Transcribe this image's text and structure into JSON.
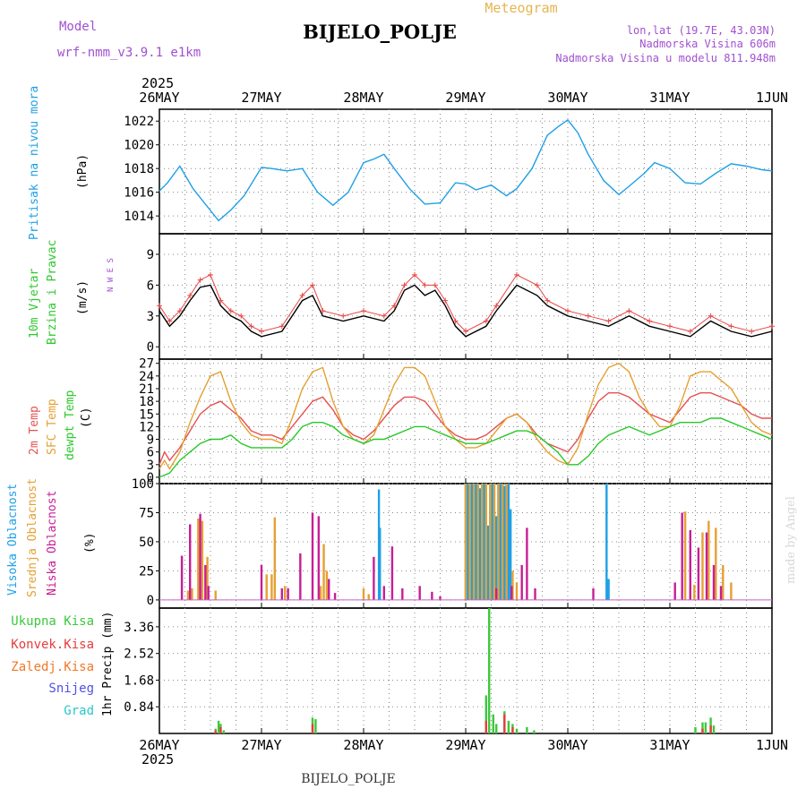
{
  "header": {
    "model_label": "Model",
    "model_name": "wrf-nmm_v3.9.1 e1km",
    "title": "BIJELO_POLJE",
    "subtitle": "Meteogram",
    "coords": "lon,lat (19.7E, 43.03N)",
    "elevation": "Nadmorska Visina 606m",
    "model_elevation": "Nadmorska Visina u modelu 811.948m",
    "watermark": "made by Angel",
    "footer": "BIJELO_POLJE"
  },
  "time_axis": {
    "top_year": "2025",
    "bottom_year": "2025",
    "labels": [
      "26MAY",
      "27MAY",
      "28MAY",
      "29MAY",
      "30MAY",
      "31MAY",
      "1JUN"
    ]
  },
  "colors": {
    "pressure": "#1ea0e6",
    "wind_speed": "#000000",
    "wind_gust": "#e64646",
    "t2m": "#e65050",
    "sfc": "#e6a032",
    "dewpt": "#28c828",
    "high_cloud": "#1ea0e6",
    "mid_cloud": "#e6a032",
    "low_cloud": "#c81e96",
    "total_rain": "#3cc83c",
    "conv_rain": "#e63c3c",
    "frozen_rain": "#f07828",
    "snow": "#5050e6",
    "hail": "#28c8c8",
    "axis_label_purple": "#a050d0"
  },
  "chart_data": [
    {
      "type": "line",
      "ylabel_left": "Pritisak na nivou mora",
      "unit": "(hPa)",
      "yticks": [
        1014,
        1016,
        1018,
        1020,
        1022
      ],
      "ylim": [
        1012.5,
        1023
      ],
      "series": [
        {
          "key": "pressure",
          "x": [
            0,
            0.08,
            0.2,
            0.33,
            0.45,
            0.58,
            0.7,
            0.83,
            1.0,
            1.1,
            1.25,
            1.4,
            1.55,
            1.7,
            1.85,
            2.0,
            2.1,
            2.2,
            2.3,
            2.45,
            2.6,
            2.75,
            2.9,
            3.0,
            3.1,
            3.25,
            3.4,
            3.5,
            3.65,
            3.8,
            3.9,
            4.0,
            4.1,
            4.2,
            4.35,
            4.5,
            4.6,
            4.75,
            4.85,
            5.0,
            5.15,
            5.3,
            5.45,
            5.6,
            5.75,
            5.9,
            6.0
          ],
          "values": [
            1016.1,
            1016.8,
            1018.2,
            1016.3,
            1015.0,
            1013.6,
            1014.5,
            1015.7,
            1018.1,
            1018.0,
            1017.8,
            1018.0,
            1016.0,
            1014.9,
            1016.0,
            1018.5,
            1018.8,
            1019.2,
            1018.0,
            1016.3,
            1015.0,
            1015.1,
            1016.8,
            1016.7,
            1016.2,
            1016.6,
            1015.7,
            1016.3,
            1018.0,
            1020.8,
            1021.5,
            1022.1,
            1021.0,
            1019.2,
            1017.0,
            1015.8,
            1016.5,
            1017.6,
            1018.5,
            1018.0,
            1016.8,
            1016.7,
            1017.6,
            1018.4,
            1018.2,
            1017.9,
            1017.8
          ]
        }
      ]
    },
    {
      "type": "line",
      "ylabel_left": "10m Vjetar Brzina i Pravac",
      "unit": "(m/s)",
      "compass": "N W E S",
      "yticks": [
        0,
        3,
        6,
        9
      ],
      "ylim": [
        -1.2,
        11
      ],
      "series": [
        {
          "key": "wind_speed",
          "x": [
            0,
            0.1,
            0.2,
            0.3,
            0.4,
            0.5,
            0.6,
            0.7,
            0.8,
            0.9,
            1.0,
            1.2,
            1.4,
            1.5,
            1.6,
            1.8,
            2.0,
            2.2,
            2.3,
            2.4,
            2.5,
            2.6,
            2.7,
            2.8,
            2.9,
            3.0,
            3.2,
            3.3,
            3.5,
            3.7,
            3.8,
            4.0,
            4.2,
            4.4,
            4.6,
            4.8,
            5.0,
            5.2,
            5.4,
            5.6,
            5.8,
            6.0
          ],
          "values": [
            3.5,
            2.0,
            3.0,
            4.5,
            5.8,
            6.0,
            4.0,
            3.0,
            2.5,
            1.5,
            1.0,
            1.5,
            4.5,
            5.0,
            3.0,
            2.5,
            3.0,
            2.5,
            3.5,
            5.5,
            6.0,
            5.0,
            5.5,
            4.0,
            2.0,
            1.0,
            2.0,
            3.5,
            6.0,
            5.0,
            4.0,
            3.0,
            2.5,
            2.0,
            3.0,
            2.0,
            1.5,
            1.0,
            2.5,
            1.5,
            1.0,
            1.5
          ]
        },
        {
          "key": "wind_gust",
          "x": [
            0,
            0.1,
            0.2,
            0.3,
            0.4,
            0.5,
            0.6,
            0.7,
            0.8,
            0.9,
            1.0,
            1.2,
            1.4,
            1.5,
            1.6,
            1.8,
            2.0,
            2.2,
            2.3,
            2.4,
            2.5,
            2.6,
            2.7,
            2.8,
            2.9,
            3.0,
            3.2,
            3.3,
            3.5,
            3.7,
            3.8,
            4.0,
            4.2,
            4.4,
            4.6,
            4.8,
            5.0,
            5.2,
            5.4,
            5.6,
            5.8,
            6.0
          ],
          "values": [
            4.0,
            2.5,
            3.5,
            5.0,
            6.5,
            7.0,
            4.5,
            3.5,
            3.0,
            2.0,
            1.5,
            2.0,
            5.0,
            6.0,
            3.5,
            3.0,
            3.5,
            3.0,
            4.0,
            6.0,
            7.0,
            6.0,
            6.0,
            4.5,
            2.5,
            1.5,
            2.5,
            4.0,
            7.0,
            6.0,
            4.5,
            3.5,
            3.0,
            2.5,
            3.5,
            2.5,
            2.0,
            1.5,
            3.0,
            2.0,
            1.5,
            2.0
          ]
        }
      ]
    },
    {
      "type": "line",
      "ylabel_left": [
        "2m Temp",
        "SFC Temp",
        "dewpt Temp"
      ],
      "unit": "(C)",
      "yticks": [
        0,
        3,
        6,
        9,
        12,
        15,
        18,
        21,
        24,
        27
      ],
      "ylim": [
        -1.5,
        28
      ],
      "series": [
        {
          "key": "t2m",
          "x": [
            0,
            0.05,
            0.1,
            0.2,
            0.3,
            0.4,
            0.5,
            0.6,
            0.7,
            0.8,
            0.9,
            1.0,
            1.1,
            1.2,
            1.3,
            1.4,
            1.5,
            1.6,
            1.7,
            1.8,
            1.9,
            2.0,
            2.1,
            2.2,
            2.3,
            2.4,
            2.5,
            2.6,
            2.7,
            2.8,
            2.9,
            3.0,
            3.1,
            3.2,
            3.3,
            3.4,
            3.5,
            3.6,
            3.7,
            3.8,
            3.9,
            4.0,
            4.1,
            4.2,
            4.3,
            4.4,
            4.5,
            4.6,
            4.7,
            4.8,
            4.9,
            5.0,
            5.1,
            5.2,
            5.3,
            5.4,
            5.5,
            5.6,
            5.7,
            5.8,
            5.9,
            6.0
          ],
          "values": [
            3,
            6,
            4,
            7,
            11,
            15,
            17,
            18,
            16,
            14,
            11,
            10,
            10,
            9,
            12,
            15,
            18,
            19,
            16,
            12,
            10,
            9,
            11,
            14,
            17,
            19,
            19,
            18,
            15,
            12,
            10,
            9,
            9,
            10,
            12,
            14,
            15,
            13,
            10,
            8,
            7,
            6,
            9,
            14,
            18,
            20,
            20,
            19,
            17,
            15,
            14,
            13,
            16,
            19,
            20,
            20,
            19,
            18,
            17,
            15,
            14,
            14
          ]
        },
        {
          "key": "sfc",
          "x": [
            0,
            0.05,
            0.1,
            0.2,
            0.3,
            0.4,
            0.5,
            0.6,
            0.7,
            0.8,
            0.9,
            1.0,
            1.1,
            1.2,
            1.3,
            1.4,
            1.5,
            1.6,
            1.7,
            1.8,
            1.9,
            2.0,
            2.1,
            2.2,
            2.3,
            2.4,
            2.5,
            2.6,
            2.7,
            2.8,
            2.9,
            3.0,
            3.1,
            3.2,
            3.3,
            3.4,
            3.5,
            3.6,
            3.7,
            3.8,
            3.9,
            4.0,
            4.1,
            4.2,
            4.3,
            4.4,
            4.5,
            4.6,
            4.7,
            4.8,
            4.9,
            5.0,
            5.1,
            5.2,
            5.3,
            5.4,
            5.5,
            5.6,
            5.7,
            5.8,
            5.9,
            6.0
          ],
          "values": [
            2,
            4,
            2,
            6,
            13,
            19,
            24,
            25,
            18,
            13,
            10,
            9,
            9,
            8,
            14,
            21,
            25,
            26,
            18,
            12,
            9,
            8,
            10,
            16,
            22,
            26,
            26,
            24,
            18,
            12,
            9,
            7,
            7,
            8,
            11,
            14,
            15,
            13,
            9,
            6,
            4,
            3,
            7,
            15,
            22,
            26,
            27,
            25,
            19,
            15,
            12,
            12,
            17,
            24,
            25,
            25,
            23,
            21,
            17,
            13,
            11,
            10
          ]
        },
        {
          "key": "dewpt",
          "x": [
            0,
            0.1,
            0.2,
            0.3,
            0.4,
            0.5,
            0.6,
            0.7,
            0.8,
            0.9,
            1.0,
            1.1,
            1.2,
            1.3,
            1.4,
            1.5,
            1.6,
            1.7,
            1.8,
            1.9,
            2.0,
            2.1,
            2.2,
            2.3,
            2.4,
            2.5,
            2.6,
            2.7,
            2.8,
            2.9,
            3.0,
            3.1,
            3.2,
            3.3,
            3.4,
            3.5,
            3.6,
            3.7,
            3.8,
            3.9,
            4.0,
            4.1,
            4.2,
            4.3,
            4.4,
            4.5,
            4.6,
            4.7,
            4.8,
            4.9,
            5.0,
            5.1,
            5.2,
            5.3,
            5.4,
            5.5,
            5.6,
            5.7,
            5.8,
            5.9,
            6.0
          ],
          "values": [
            0,
            1,
            4,
            6,
            8,
            9,
            9,
            10,
            8,
            7,
            7,
            7,
            7,
            9,
            12,
            13,
            13,
            12,
            10,
            9,
            8,
            9,
            9,
            10,
            11,
            12,
            12,
            11,
            10,
            9,
            8,
            8,
            8,
            9,
            10,
            11,
            11,
            10,
            8,
            6,
            3,
            3,
            5,
            8,
            10,
            11,
            12,
            11,
            10,
            11,
            12,
            13,
            13,
            13,
            14,
            14,
            13,
            12,
            11,
            10,
            9
          ]
        }
      ]
    },
    {
      "type": "bar",
      "ylabel_left": [
        "Visoka Oblacnost",
        "Srednja Oblacnost",
        "Niska Oblacnost"
      ],
      "unit": "(%)",
      "yticks": [
        0,
        25,
        50,
        75,
        100
      ],
      "ylim": [
        -7,
        100
      ],
      "series": [
        {
          "key": "high_cloud",
          "x": [
            2.15,
            2.16,
            3.0,
            3.02,
            3.04,
            3.06,
            3.08,
            3.1,
            3.12,
            3.14,
            3.16,
            3.18,
            3.2,
            3.22,
            3.24,
            3.26,
            3.28,
            3.3,
            3.32,
            3.34,
            3.36,
            3.38,
            3.4,
            3.42,
            3.44,
            4.38,
            4.4
          ],
          "values": [
            95,
            62,
            100,
            100,
            98,
            100,
            100,
            100,
            100,
            96,
            100,
            100,
            100,
            64,
            100,
            100,
            100,
            72,
            100,
            100,
            100,
            98,
            100,
            100,
            78,
            100,
            18
          ]
        },
        {
          "key": "mid_cloud",
          "x": [
            0.28,
            0.32,
            0.38,
            0.42,
            0.47,
            0.55,
            1.05,
            1.1,
            1.13,
            1.23,
            1.58,
            1.61,
            1.64,
            2.0,
            2.05,
            3.0,
            3.04,
            3.08,
            3.12,
            3.16,
            3.2,
            3.24,
            3.28,
            3.32,
            3.36,
            3.4,
            3.46,
            3.5,
            5.15,
            5.2,
            5.24,
            5.32,
            5.38,
            5.45,
            5.52,
            5.6
          ],
          "values": [
            8,
            10,
            70,
            68,
            37,
            8,
            22,
            22,
            71,
            12,
            12,
            48,
            25,
            10,
            5,
            100,
            100,
            100,
            100,
            100,
            100,
            100,
            100,
            100,
            100,
            100,
            25,
            15,
            76,
            12,
            13,
            58,
            68,
            62,
            30,
            15
          ]
        },
        {
          "key": "low_cloud",
          "x": [
            0.22,
            0.3,
            0.4,
            0.45,
            0.48,
            1.0,
            1.2,
            1.26,
            1.38,
            1.5,
            1.56,
            1.66,
            1.72,
            2.1,
            2.2,
            2.28,
            2.38,
            2.55,
            2.67,
            2.75,
            3.3,
            3.45,
            3.55,
            3.6,
            3.68,
            4.25,
            5.05,
            5.12,
            5.2,
            5.28,
            5.36,
            5.43,
            5.5
          ],
          "values": [
            38,
            65,
            74,
            30,
            12,
            30,
            10,
            10,
            40,
            75,
            72,
            18,
            6,
            37,
            12,
            46,
            10,
            12,
            7,
            3,
            10,
            12,
            30,
            62,
            10,
            10,
            15,
            75,
            60,
            45,
            58,
            30,
            12
          ]
        }
      ]
    },
    {
      "type": "bar",
      "ylabel_left": [
        "Ukupna Kisa",
        "Konvek.Kisa",
        "Zaledj.Kisa",
        "Snijeg",
        "Grad"
      ],
      "unit": "1hr Precip (mm)",
      "yticks": [
        0.84,
        1.68,
        2.52,
        3.36
      ],
      "yticks_labels": [
        "0.84",
        "1.68",
        "2.52",
        "3.36"
      ],
      "ylim": [
        0,
        3.95
      ],
      "series": [
        {
          "key": "total_rain",
          "x": [
            0.55,
            0.58,
            0.6,
            0.63,
            1.5,
            1.53,
            3.2,
            3.23,
            3.27,
            3.3,
            3.38,
            3.42,
            3.46,
            3.5,
            3.6,
            3.67,
            5.25,
            5.32,
            5.35,
            5.4,
            5.43
          ],
          "values": [
            0.15,
            0.4,
            0.3,
            0.1,
            0.5,
            0.45,
            1.2,
            3.95,
            0.6,
            0.3,
            0.7,
            0.4,
            0.3,
            0.15,
            0.2,
            0.1,
            0.2,
            0.35,
            0.35,
            0.5,
            0.25
          ]
        },
        {
          "key": "conv_rain",
          "x": [
            0.55,
            0.6,
            1.5,
            3.2,
            3.38,
            3.46,
            5.32,
            5.4
          ],
          "values": [
            0.1,
            0.2,
            0.3,
            0.4,
            0.6,
            0.2,
            0.15,
            0.25
          ]
        }
      ]
    }
  ]
}
